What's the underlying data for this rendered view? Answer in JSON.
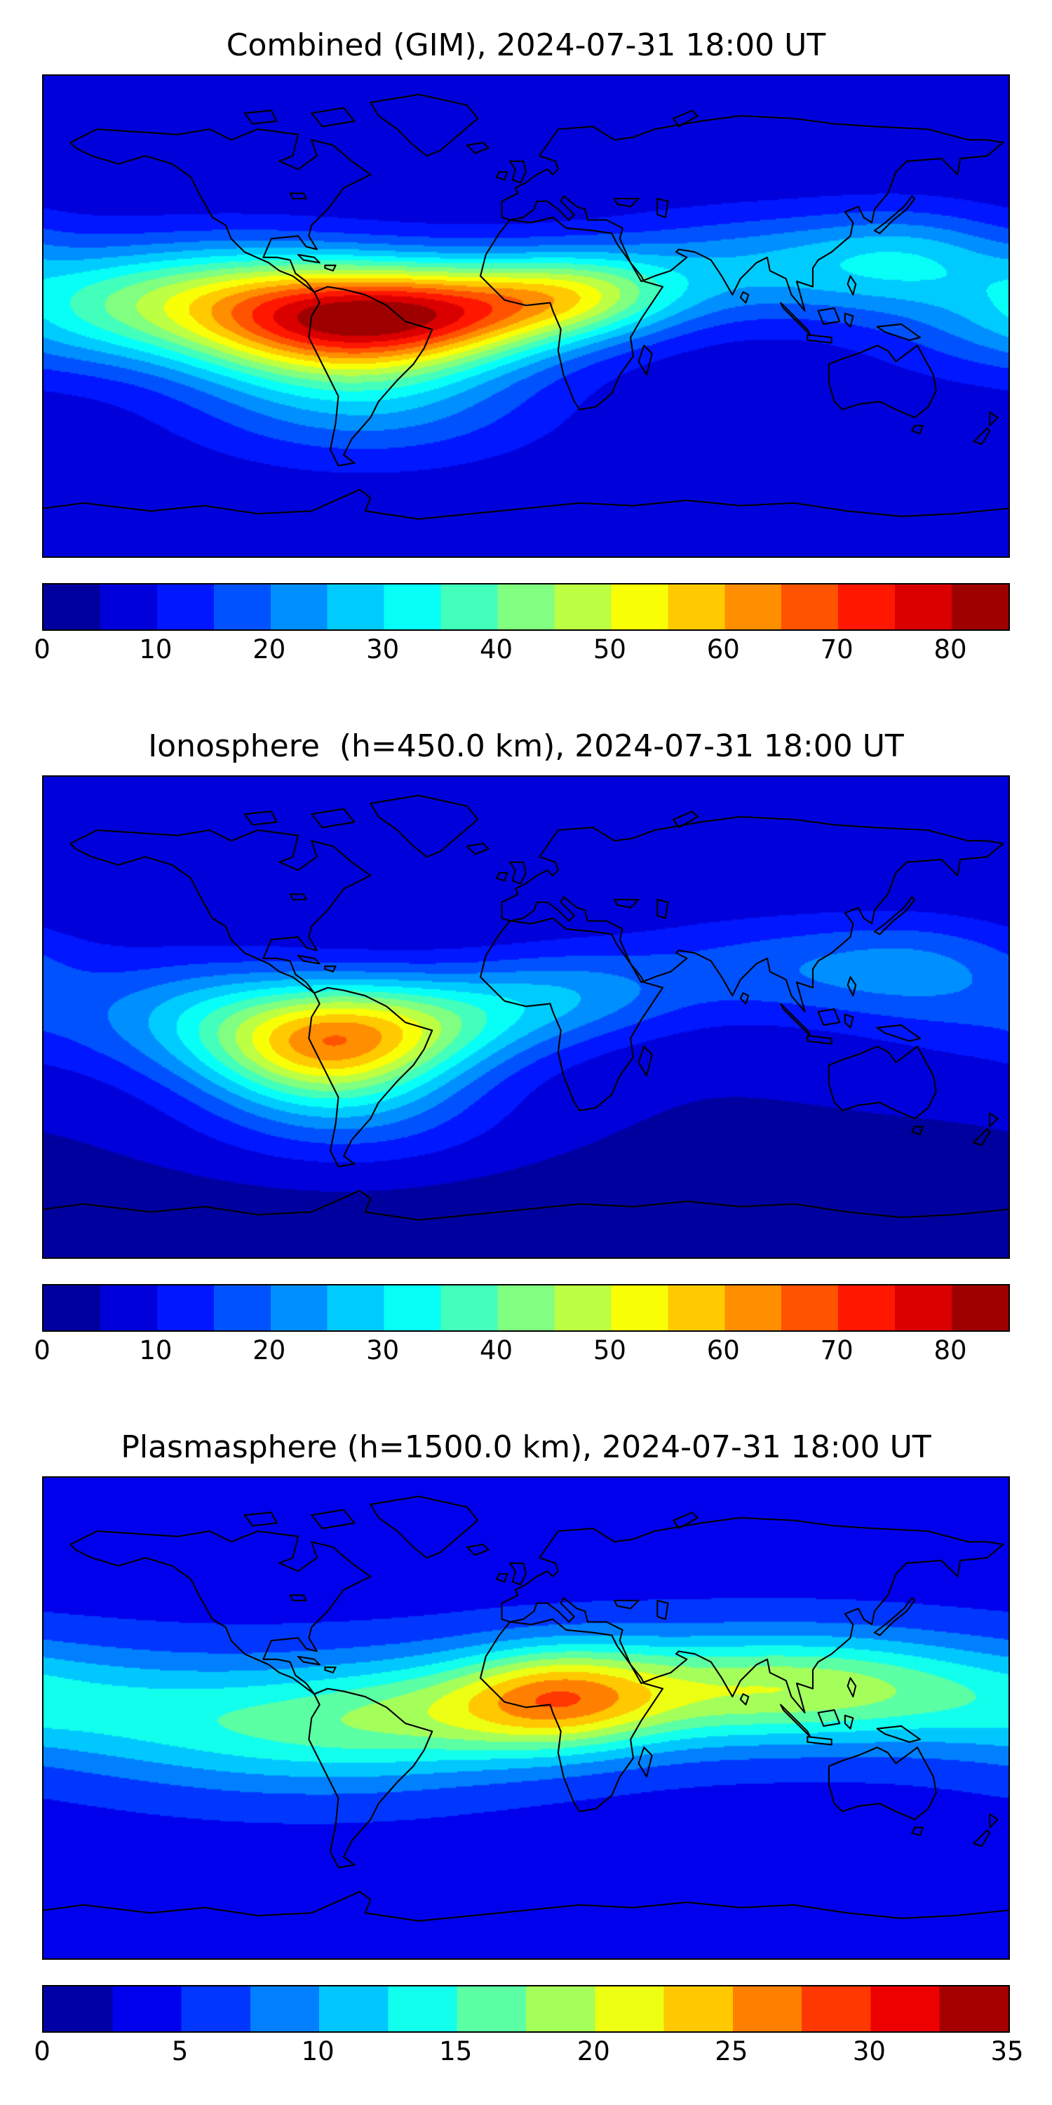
{
  "figure": {
    "background": "#ffffff",
    "text_color": "#000000",
    "frame_color": "#000000"
  },
  "chart_data": [
    {
      "type": "heatmap",
      "title": "Combined (GIM), 2024-07-31 18:00 UT",
      "projection": "equirectangular",
      "lon_range": [
        -180,
        180
      ],
      "lat_range": [
        -90,
        90
      ],
      "colormap": "jet",
      "value_range": [
        0,
        85
      ],
      "contour_step": 5,
      "base_value": 6,
      "grid": false,
      "legend": false,
      "colorbar": {
        "orientation": "horizontal",
        "ticks": [
          0,
          10,
          20,
          30,
          40,
          50,
          60,
          70,
          80
        ]
      },
      "peaks": [
        {
          "lon": -68,
          "lat": -2,
          "sigma_lon": 38,
          "sigma_lat": 15,
          "amplitude": 50
        },
        {
          "lon": -25,
          "lat": 2,
          "sigma_lon": 35,
          "sigma_lat": 13,
          "amplitude": 35
        },
        {
          "lon": 20,
          "lat": 8,
          "sigma_lon": 28,
          "sigma_lat": 11,
          "amplitude": 28
        },
        {
          "lon": -110,
          "lat": 5,
          "sigma_lon": 35,
          "sigma_lat": 16,
          "amplitude": 25
        },
        {
          "lon": 90,
          "lat": 18,
          "sigma_lon": 45,
          "sigma_lat": 14,
          "amplitude": 18
        },
        {
          "lon": 145,
          "lat": 22,
          "sigma_lon": 28,
          "sigma_lat": 13,
          "amplitude": 14
        },
        {
          "lon": -60,
          "lat": -32,
          "sigma_lon": 45,
          "sigma_lat": 16,
          "amplitude": 16
        },
        {
          "lon": 178,
          "lat": -5,
          "sigma_lon": 35,
          "sigma_lat": 14,
          "amplitude": 10
        },
        {
          "lon": -155,
          "lat": 8,
          "sigma_lon": 30,
          "sigma_lat": 14,
          "amplitude": 14
        }
      ]
    },
    {
      "type": "heatmap",
      "title": "Ionosphere  (h=450.0 km), 2024-07-31 18:00 UT",
      "projection": "equirectangular",
      "lon_range": [
        -180,
        180
      ],
      "lat_range": [
        -90,
        90
      ],
      "colormap": "jet",
      "value_range": [
        0,
        85
      ],
      "contour_step": 5,
      "base_value": 5,
      "grid": false,
      "legend": false,
      "colorbar": {
        "orientation": "horizontal",
        "ticks": [
          0,
          10,
          20,
          30,
          40,
          50,
          60,
          70,
          80
        ]
      },
      "peaks": [
        {
          "lon": -75,
          "lat": -10,
          "sigma_lon": 30,
          "sigma_lat": 15,
          "amplitude": 44
        },
        {
          "lon": -35,
          "lat": -2,
          "sigma_lon": 32,
          "sigma_lat": 13,
          "amplitude": 22
        },
        {
          "lon": 15,
          "lat": 8,
          "sigma_lon": 30,
          "sigma_lat": 12,
          "amplitude": 14
        },
        {
          "lon": 95,
          "lat": 18,
          "sigma_lon": 45,
          "sigma_lat": 14,
          "amplitude": 12
        },
        {
          "lon": -120,
          "lat": 0,
          "sigma_lon": 30,
          "sigma_lat": 16,
          "amplitude": 15
        },
        {
          "lon": -65,
          "lat": -35,
          "sigma_lon": 40,
          "sigma_lat": 16,
          "amplitude": 12
        },
        {
          "lon": 150,
          "lat": 20,
          "sigma_lon": 30,
          "sigma_lat": 13,
          "amplitude": 9
        },
        {
          "lon": 180,
          "lat": 0,
          "sigma_lon": 40,
          "sigma_lat": 15,
          "amplitude": 7
        },
        {
          "lon": 0,
          "lat": -75,
          "sigma_lon": 200,
          "sigma_lat": 18,
          "amplitude": -2.5
        }
      ]
    },
    {
      "type": "heatmap",
      "title": "Plasmasphere (h=1500.0 km), 2024-07-31 18:00 UT",
      "projection": "equirectangular",
      "lon_range": [
        -180,
        180
      ],
      "lat_range": [
        -90,
        90
      ],
      "colormap": "jet",
      "value_range": [
        0,
        35
      ],
      "contour_step": 2.5,
      "base_value": 4,
      "grid": false,
      "legend": false,
      "colorbar": {
        "orientation": "horizontal",
        "ticks": [
          0,
          5,
          10,
          15,
          20,
          25,
          30,
          35
        ]
      },
      "peaks": [
        {
          "lon": 12,
          "lat": 8,
          "sigma_lon": 26,
          "sigma_lat": 13,
          "amplitude": 11
        },
        {
          "lon": -25,
          "lat": 3,
          "sigma_lon": 45,
          "sigma_lat": 15,
          "amplitude": 9
        },
        {
          "lon": 60,
          "lat": 10,
          "sigma_lon": 45,
          "sigma_lat": 15,
          "amplitude": 10
        },
        {
          "lon": 115,
          "lat": 12,
          "sigma_lon": 40,
          "sigma_lat": 14,
          "amplitude": 8
        },
        {
          "lon": -80,
          "lat": -5,
          "sigma_lon": 50,
          "sigma_lat": 17,
          "amplitude": 7
        },
        {
          "lon": 170,
          "lat": 8,
          "sigma_lon": 45,
          "sigma_lat": 15,
          "amplitude": 5
        },
        {
          "lon": -140,
          "lat": 0,
          "sigma_lon": 45,
          "sigma_lat": 16,
          "amplitude": 4
        },
        {
          "lon": 0,
          "lat": -80,
          "sigma_lon": 200,
          "sigma_lat": 15,
          "amplitude": -1.5
        }
      ]
    }
  ]
}
